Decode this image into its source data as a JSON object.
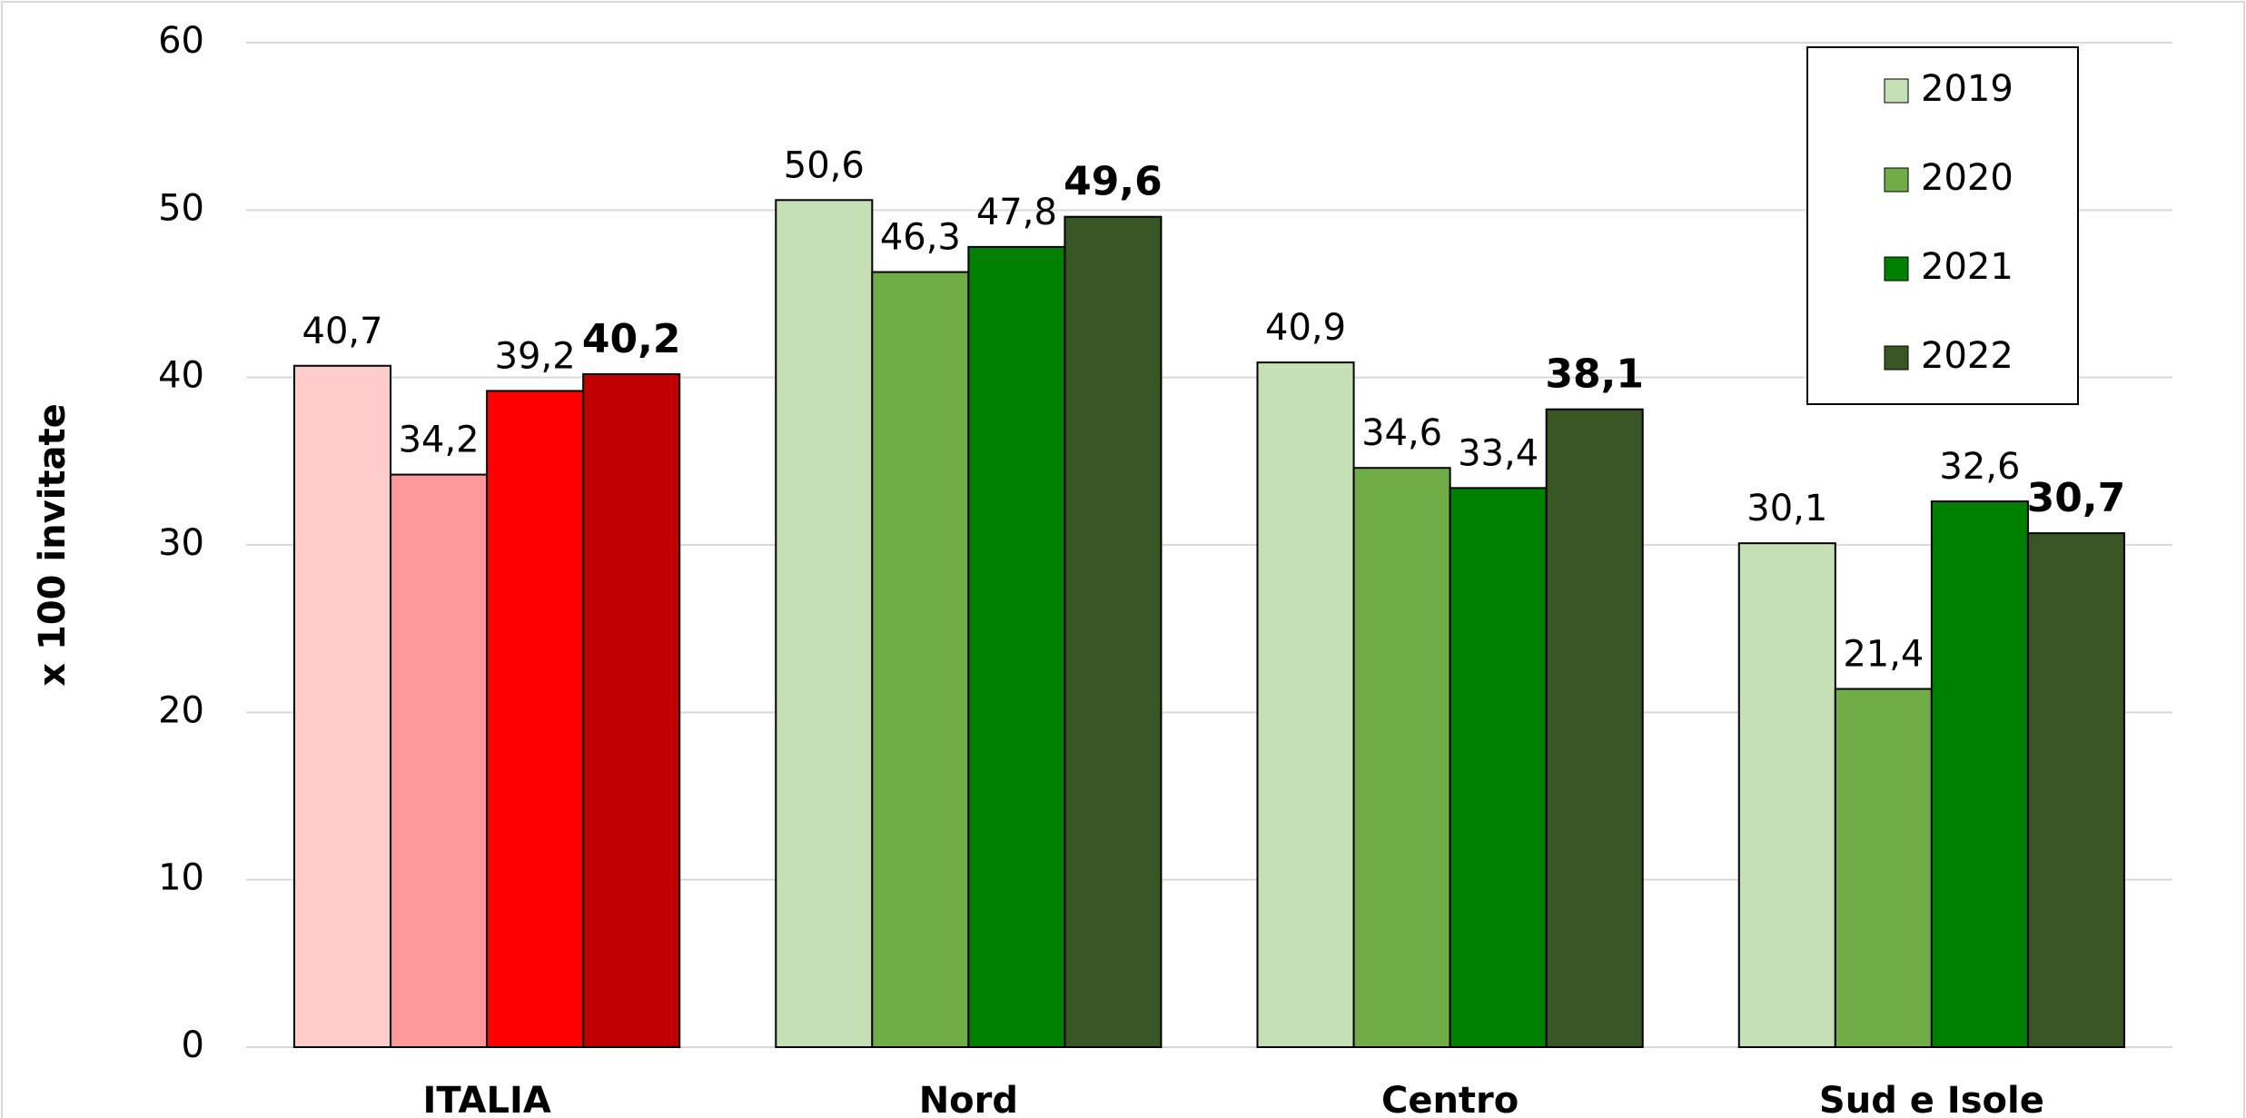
{
  "chart_data": {
    "type": "grouped_bar",
    "y_label": "x 100 invitate",
    "categories": [
      "ITALIA",
      "Nord",
      "Centro",
      "Sud e Isole"
    ],
    "ylim": [
      0,
      60
    ],
    "yticks": [
      0,
      10,
      20,
      30,
      40,
      50,
      60
    ],
    "grid": true,
    "legend": "top-right",
    "series": [
      {
        "name": "2019",
        "color": "#c5e0b4",
        "colors": [
          "#ffcccc",
          "#c5e0b4",
          "#c5e0b4",
          "#c5e0b4"
        ],
        "values": [
          40.7,
          50.6,
          40.9,
          30.1
        ],
        "value_labels": [
          "40,7",
          "50,6",
          "40,9",
          "30,1"
        ]
      },
      {
        "name": "2020",
        "color": "#70ad47",
        "colors": [
          "#ff9999",
          "#70ad47",
          "#70ad47",
          "#70ad47"
        ],
        "values": [
          34.2,
          46.3,
          34.6,
          21.4
        ],
        "value_labels": [
          "34,2",
          "46,3",
          "34,6",
          "21,4"
        ]
      },
      {
        "name": "2021",
        "color": "#008000",
        "colors": [
          "#ff0000",
          "#008000",
          "#008000",
          "#008000"
        ],
        "values": [
          39.2,
          47.8,
          33.4,
          32.6
        ],
        "value_labels": [
          "39,2",
          "47,8",
          "33,4",
          "32,6"
        ]
      },
      {
        "name": "2022",
        "color": "#375623",
        "colors": [
          "#c00000",
          "#375623",
          "#375623",
          "#375623"
        ],
        "values": [
          40.2,
          49.6,
          38.1,
          30.7
        ],
        "value_labels": [
          "40,2",
          "49,6",
          "38,1",
          "30,7"
        ],
        "bold_labels": true
      }
    ]
  }
}
